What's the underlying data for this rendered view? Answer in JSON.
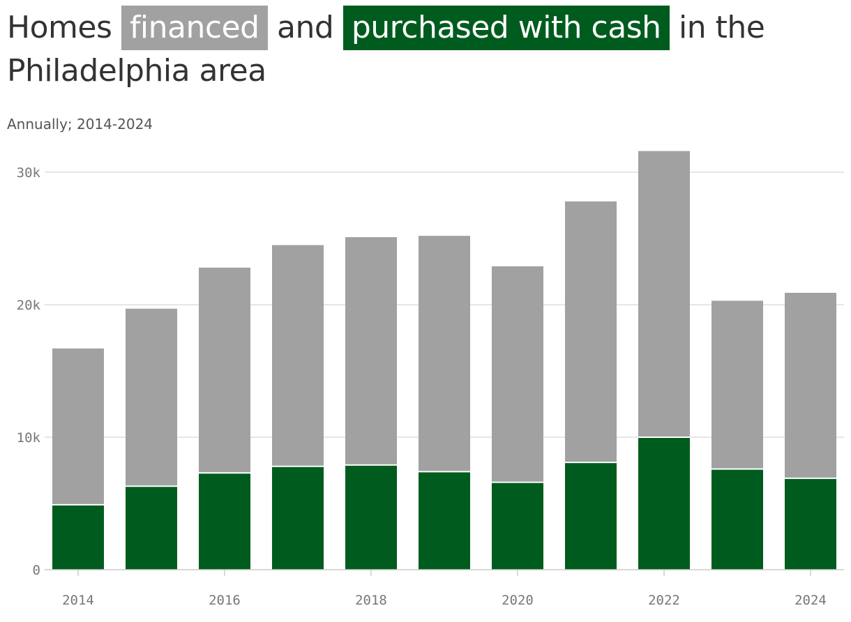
{
  "title": {
    "part1": "Homes",
    "highlight_financed": "financed",
    "part2": "and",
    "highlight_cash": "purchased with cash",
    "part3": "in the Philadelphia area"
  },
  "subtitle": "Annually; 2014-2024",
  "colors": {
    "financed": "#a0a1a0",
    "cash": "#005c1e",
    "grid": "#dddddd",
    "axis": "#cccccc"
  },
  "chart_data": {
    "type": "bar",
    "stacked": true,
    "categories": [
      "2014",
      "2015",
      "2016",
      "2017",
      "2018",
      "2019",
      "2020",
      "2021",
      "2022",
      "2023",
      "2024"
    ],
    "series": [
      {
        "name": "purchased with cash",
        "values": [
          4900,
          6300,
          7300,
          7800,
          7900,
          7400,
          6600,
          8100,
          10000,
          7600,
          6900
        ]
      },
      {
        "name": "financed",
        "values": [
          11800,
          13400,
          15500,
          16700,
          17200,
          17800,
          16300,
          19700,
          21600,
          12700,
          14000
        ]
      }
    ],
    "x_tick_labels": [
      "2014",
      "2016",
      "2018",
      "2020",
      "2022",
      "2024"
    ],
    "y_ticks": [
      {
        "value": 0,
        "label": "0"
      },
      {
        "value": 10000,
        "label": "10k"
      },
      {
        "value": 20000,
        "label": "20k"
      },
      {
        "value": 30000,
        "label": "30k"
      }
    ],
    "ylim": [
      0,
      31600
    ],
    "grid": true,
    "xlabel": "",
    "ylabel": ""
  }
}
